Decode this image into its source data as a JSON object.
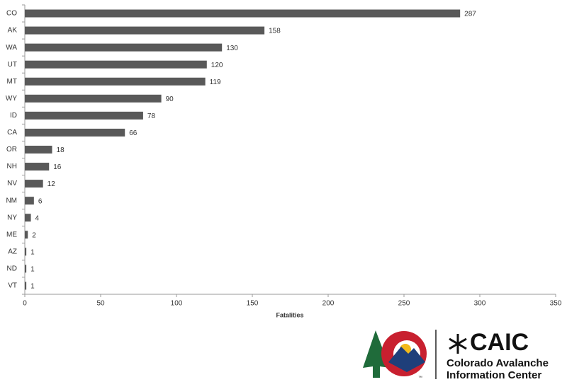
{
  "chart_data": {
    "type": "barh",
    "categories": [
      "CO",
      "AK",
      "WA",
      "UT",
      "MT",
      "WY",
      "ID",
      "CA",
      "OR",
      "NH",
      "NV",
      "NM",
      "NY",
      "ME",
      "AZ",
      "ND",
      "VT"
    ],
    "values": [
      287,
      158,
      130,
      120,
      119,
      90,
      78,
      66,
      18,
      16,
      12,
      6,
      4,
      2,
      1,
      1,
      1
    ],
    "color": "#595959",
    "xlabel": "Fatalities",
    "xlim": [
      0,
      350
    ],
    "xticks": [
      0,
      50,
      100,
      150,
      200,
      250,
      300,
      350
    ]
  },
  "logo": {
    "name": "CAIC",
    "line1": "Colorado Avalanche",
    "line2": "Information Center",
    "mark": "™"
  }
}
